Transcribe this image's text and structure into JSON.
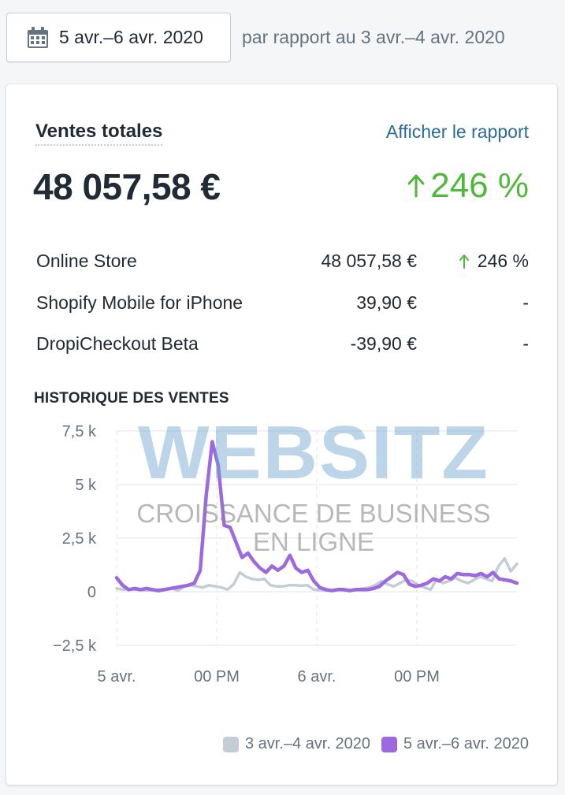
{
  "date_picker": {
    "label": "5 avr.–6 avr. 2020",
    "icon": "calendar-icon"
  },
  "compare_text": "par rapport au 3 avr.–4 avr. 2020",
  "card": {
    "title": "Ventes totales",
    "report_link": "Afficher le rapport",
    "total": "48 057,58 €",
    "total_change": "246 %",
    "positive_color": "#50b83c",
    "rows": [
      {
        "name": "Online Store",
        "value": "48 057,58 €",
        "change": "246 %",
        "up": true
      },
      {
        "name": "Shopify Mobile for iPhone",
        "value": "39,90 €",
        "change": "-",
        "up": false
      },
      {
        "name": "DropiCheckout Beta",
        "value": "-39,90 €",
        "change": "-",
        "up": false
      }
    ],
    "history_title": "HISTORIQUE DES VENTES"
  },
  "watermark": {
    "title": "WEBSITZ",
    "subtitle_1": "CROISSANCE DE BUSINESS",
    "subtitle_2": "EN LIGNE"
  },
  "chart_data": {
    "type": "line",
    "yticks": [
      "7,5 k",
      "5 k",
      "2,5 k",
      "0",
      "−2,5 k"
    ],
    "ytick_values": [
      7500,
      5000,
      2500,
      0,
      -2500
    ],
    "ylim": [
      -2500,
      7500
    ],
    "xticks": [
      "5 avr.",
      "00 PM",
      "6 avr.",
      "00 PM"
    ],
    "legend_position": "bottom-right",
    "grid": true,
    "series": [
      {
        "name": "3 avr.–4 avr. 2020",
        "color": "#c4cdd5",
        "values": [
          150,
          100,
          120,
          100,
          80,
          60,
          80,
          100,
          120,
          150,
          50,
          250,
          300,
          250,
          200,
          300,
          250,
          200,
          100,
          350,
          900,
          700,
          600,
          550,
          600,
          300,
          250,
          250,
          300,
          300,
          280,
          300,
          100,
          80,
          50,
          50,
          100,
          60,
          80,
          100,
          150,
          200,
          300,
          500,
          350,
          250,
          400,
          550,
          500,
          300,
          200,
          100,
          600,
          400,
          500,
          650,
          500,
          400,
          550,
          700,
          600,
          500,
          1200,
          1550,
          950,
          1300
        ]
      },
      {
        "name": "5 avr.–6 avr. 2020",
        "color": "#9c6ade",
        "values": [
          650,
          300,
          100,
          150,
          100,
          150,
          100,
          50,
          100,
          150,
          200,
          250,
          300,
          400,
          1000,
          4500,
          7000,
          5900,
          3100,
          3000,
          2300,
          1600,
          1800,
          1400,
          1100,
          900,
          1200,
          1000,
          1200,
          1700,
          1100,
          900,
          1000,
          500,
          200,
          100,
          50,
          100,
          100,
          50,
          100,
          100,
          100,
          150,
          250,
          500,
          700,
          900,
          800,
          350,
          250,
          300,
          400,
          600,
          500,
          700,
          600,
          850,
          800,
          800,
          750,
          850,
          700,
          900,
          600,
          550,
          500,
          400
        ]
      }
    ]
  }
}
